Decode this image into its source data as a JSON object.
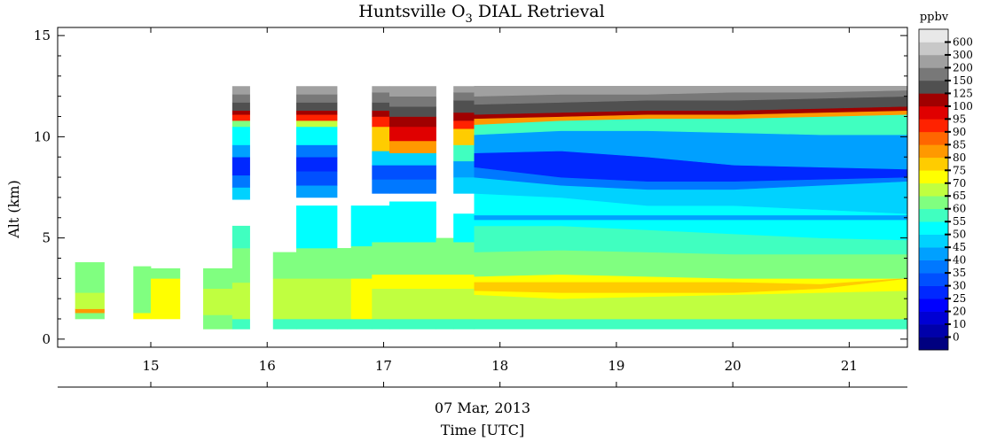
{
  "chart_data": {
    "type": "heatmap",
    "title": "Huntsville O₃ DIAL Retrieval",
    "title_main": "Huntsville O",
    "title_sub": "3",
    "title_tail": " DIAL Retrieval",
    "ylabel": "Alt (km)",
    "date_label": "07 Mar, 2013",
    "xlabel": "Time [UTC]",
    "colorbar_label": "ppbv",
    "xlim": [
      14.2,
      21.5
    ],
    "ylim": [
      -0.4,
      15.4
    ],
    "xticks": [
      15,
      16,
      17,
      18,
      19,
      20,
      21
    ],
    "yticks": [
      0,
      5,
      10,
      15
    ],
    "colorbar_levels": [
      0,
      10,
      20,
      25,
      30,
      35,
      40,
      45,
      50,
      55,
      60,
      65,
      70,
      75,
      80,
      85,
      90,
      95,
      100,
      125,
      150,
      200,
      300,
      600
    ],
    "colorbar_colors": [
      "#000080",
      "#0000aa",
      "#0000d4",
      "#0000ff",
      "#0028ff",
      "#0050ff",
      "#0078ff",
      "#00a0ff",
      "#00d2ff",
      "#00ffff",
      "#40ffc0",
      "#80ff80",
      "#c0ff40",
      "#ffff00",
      "#ffcc00",
      "#ff9900",
      "#ff6600",
      "#ff2200",
      "#e00000",
      "#a00000",
      "#505050",
      "#787878",
      "#a0a0a0",
      "#c8c8c8",
      "#e8e8e8"
    ],
    "columns": [
      {
        "t0": 14.35,
        "t1": 14.6,
        "bands": [
          [
            1.0,
            1.3,
            60
          ],
          [
            1.3,
            1.5,
            82
          ],
          [
            1.5,
            2.3,
            68
          ],
          [
            2.3,
            3.8,
            62
          ]
        ]
      },
      {
        "t0": 14.85,
        "t1": 15.0,
        "bands": [
          [
            1.0,
            1.3,
            70
          ],
          [
            1.3,
            3.6,
            63
          ]
        ]
      },
      {
        "t0": 15.0,
        "t1": 15.25,
        "bands": [
          [
            1.0,
            1.3,
            73
          ],
          [
            1.3,
            2.3,
            70
          ],
          [
            2.3,
            3.0,
            73
          ],
          [
            3.0,
            3.5,
            64
          ]
        ]
      },
      {
        "t0": 15.45,
        "t1": 15.7,
        "bands": [
          [
            0.5,
            1.2,
            60
          ],
          [
            1.2,
            2.5,
            66
          ],
          [
            2.5,
            3.5,
            63
          ]
        ]
      },
      {
        "t0": 15.7,
        "t1": 15.85,
        "bands": [
          [
            0.5,
            1.0,
            55
          ],
          [
            1.0,
            2.8,
            67
          ],
          [
            2.8,
            4.5,
            62
          ],
          [
            4.5,
            5.6,
            57
          ],
          [
            6.9,
            7.5,
            47
          ],
          [
            7.5,
            8.1,
            36
          ],
          [
            8.1,
            9.0,
            28
          ],
          [
            9.0,
            9.6,
            42
          ],
          [
            9.6,
            10.5,
            50
          ],
          [
            10.5,
            10.8,
            63
          ],
          [
            10.8,
            11.1,
            90
          ],
          [
            11.1,
            11.3,
            110
          ],
          [
            11.3,
            11.7,
            137
          ],
          [
            11.7,
            12.1,
            175
          ],
          [
            12.1,
            12.5,
            250
          ]
        ]
      },
      {
        "t0": 16.05,
        "t1": 16.25,
        "bands": [
          [
            0.5,
            1.0,
            55
          ],
          [
            1.0,
            3.0,
            68
          ],
          [
            3.0,
            4.3,
            62
          ]
        ]
      },
      {
        "t0": 16.25,
        "t1": 16.6,
        "bands": [
          [
            0.5,
            1.0,
            55
          ],
          [
            1.0,
            3.0,
            69
          ],
          [
            3.0,
            4.5,
            62
          ],
          [
            4.5,
            6.6,
            53
          ],
          [
            7.0,
            7.6,
            43
          ],
          [
            7.6,
            8.3,
            33
          ],
          [
            8.3,
            9.0,
            27
          ],
          [
            9.0,
            9.6,
            38
          ],
          [
            9.6,
            10.5,
            52
          ],
          [
            10.5,
            10.8,
            67
          ],
          [
            10.8,
            11.1,
            92
          ],
          [
            11.1,
            11.3,
            112
          ],
          [
            11.3,
            11.7,
            137
          ],
          [
            11.7,
            12.1,
            175
          ],
          [
            12.1,
            12.5,
            250
          ]
        ]
      },
      {
        "t0": 16.6,
        "t1": 16.72,
        "bands": [
          [
            0.5,
            1.0,
            55
          ],
          [
            1.0,
            3.0,
            69
          ],
          [
            3.0,
            4.5,
            61
          ]
        ]
      },
      {
        "t0": 16.72,
        "t1": 16.9,
        "bands": [
          [
            0.5,
            1.0,
            55
          ],
          [
            1.0,
            3.0,
            70
          ],
          [
            3.0,
            4.6,
            62
          ],
          [
            4.6,
            6.6,
            53
          ]
        ]
      },
      {
        "t0": 16.9,
        "t1": 17.05,
        "bands": [
          [
            0.5,
            1.0,
            55
          ],
          [
            1.0,
            2.5,
            69
          ],
          [
            2.5,
            3.2,
            72
          ],
          [
            3.2,
            4.8,
            62
          ],
          [
            4.8,
            6.6,
            53
          ],
          [
            7.2,
            7.9,
            37
          ],
          [
            7.9,
            8.6,
            30
          ],
          [
            8.6,
            9.3,
            45
          ],
          [
            9.3,
            10.5,
            77
          ],
          [
            10.5,
            11.0,
            90
          ],
          [
            11.0,
            11.3,
            115
          ],
          [
            11.3,
            11.7,
            137
          ],
          [
            11.7,
            12.2,
            175
          ],
          [
            12.2,
            12.5,
            250
          ]
        ]
      },
      {
        "t0": 17.05,
        "t1": 17.45,
        "bands": [
          [
            0.5,
            1.0,
            55
          ],
          [
            1.0,
            2.5,
            69
          ],
          [
            2.5,
            3.2,
            72
          ],
          [
            3.2,
            4.8,
            62
          ],
          [
            4.8,
            6.8,
            53
          ],
          [
            7.2,
            7.9,
            37
          ],
          [
            7.9,
            8.6,
            30
          ],
          [
            8.6,
            9.2,
            45
          ],
          [
            9.2,
            9.8,
            80
          ],
          [
            9.8,
            10.5,
            95
          ],
          [
            10.5,
            11.0,
            112
          ],
          [
            11.0,
            11.5,
            137
          ],
          [
            11.5,
            12.0,
            175
          ],
          [
            12.0,
            12.5,
            250
          ]
        ]
      },
      {
        "t0": 17.45,
        "t1": 17.6,
        "bands": [
          [
            0.5,
            1.0,
            55
          ],
          [
            1.0,
            2.5,
            69
          ],
          [
            2.5,
            3.2,
            72
          ],
          [
            3.2,
            5.0,
            62
          ]
        ]
      },
      {
        "t0": 17.6,
        "t1": 17.78,
        "bands": [
          [
            0.5,
            1.0,
            55
          ],
          [
            1.0,
            2.5,
            69
          ],
          [
            2.5,
            3.2,
            73
          ],
          [
            3.2,
            4.8,
            62
          ],
          [
            4.8,
            6.2,
            53
          ],
          [
            7.2,
            8.0,
            47
          ],
          [
            8.0,
            8.8,
            40
          ],
          [
            8.8,
            9.6,
            55
          ],
          [
            9.6,
            10.4,
            75
          ],
          [
            10.4,
            10.8,
            90
          ],
          [
            10.8,
            11.2,
            115
          ],
          [
            11.2,
            11.8,
            137
          ],
          [
            11.8,
            12.2,
            175
          ],
          [
            12.2,
            12.5,
            250
          ]
        ]
      }
    ],
    "cont_x0": 17.78,
    "cont_x1": 21.5,
    "cont_layers": [
      {
        "bot": [
          0.5,
          0.5,
          0.5,
          0.5,
          0.5,
          0.5
        ],
        "top": [
          1.0,
          1.0,
          1.0,
          1.0,
          1.0,
          1.0
        ],
        "v": 55
      },
      {
        "bot": [
          1.0,
          1.0,
          1.0,
          1.0,
          1.0,
          1.0
        ],
        "top": [
          2.2,
          2.0,
          2.1,
          2.2,
          2.3,
          2.4
        ],
        "v": 68
      },
      {
        "bot": [
          2.2,
          2.0,
          2.1,
          2.2,
          2.3,
          2.4
        ],
        "top": [
          3.1,
          3.2,
          3.1,
          3.0,
          3.0,
          3.0
        ],
        "v": 72
      },
      {
        "bot": [
          2.4,
          2.3,
          2.3,
          2.3,
          2.5,
          3.0
        ],
        "top": [
          2.8,
          2.8,
          2.8,
          2.8,
          2.7,
          3.0
        ],
        "v": 77
      },
      {
        "bot": [
          3.1,
          3.2,
          3.1,
          3.0,
          3.0,
          3.0
        ],
        "top": [
          4.3,
          4.4,
          4.3,
          4.2,
          4.2,
          4.2
        ],
        "v": 63
      },
      {
        "bot": [
          4.3,
          4.4,
          4.3,
          4.2,
          4.2,
          4.2
        ],
        "top": [
          5.6,
          5.6,
          5.4,
          5.2,
          5.0,
          4.9
        ],
        "v": 58
      },
      {
        "bot": [
          5.6,
          5.6,
          5.4,
          5.2,
          5.0,
          4.9
        ],
        "top": [
          7.2,
          7.0,
          6.6,
          6.6,
          6.4,
          6.2
        ],
        "v": 53
      },
      {
        "bot": [
          5.9,
          5.9,
          5.9,
          5.9,
          5.9,
          5.9
        ],
        "top": [
          6.1,
          6.1,
          6.1,
          6.1,
          6.1,
          6.1
        ],
        "v": 40
      },
      {
        "bot": [
          7.2,
          7.0,
          6.6,
          6.6,
          6.4,
          6.2
        ],
        "top": [
          8.0,
          7.6,
          7.4,
          7.4,
          7.6,
          7.8
        ],
        "v": 47
      },
      {
        "bot": [
          8.0,
          7.6,
          7.4,
          7.4,
          7.6,
          7.8
        ],
        "top": [
          8.5,
          8.0,
          7.8,
          7.8,
          7.9,
          8.0
        ],
        "v": 37
      },
      {
        "bot": [
          8.5,
          8.0,
          7.8,
          7.8,
          7.9,
          8.0
        ],
        "top": [
          9.2,
          9.3,
          9.0,
          8.6,
          8.5,
          8.4
        ],
        "v": 27
      },
      {
        "bot": [
          9.2,
          9.3,
          9.0,
          8.6,
          8.5,
          8.4
        ],
        "top": [
          10.1,
          10.3,
          10.3,
          10.2,
          10.1,
          10.1
        ],
        "v": 43
      },
      {
        "bot": [
          10.1,
          10.3,
          10.3,
          10.2,
          10.1,
          10.1
        ],
        "top": [
          10.6,
          10.8,
          10.9,
          10.9,
          11.0,
          11.1
        ],
        "v": 55
      },
      {
        "bot": [
          10.6,
          10.8,
          10.9,
          10.9,
          11.0,
          11.1
        ],
        "top": [
          10.9,
          11.0,
          11.1,
          11.1,
          11.2,
          11.3
        ],
        "v": 80
      },
      {
        "bot": [
          10.9,
          11.0,
          11.1,
          11.1,
          11.2,
          11.3
        ],
        "top": [
          11.1,
          11.2,
          11.3,
          11.3,
          11.4,
          11.5
        ],
        "v": 110
      },
      {
        "bot": [
          11.1,
          11.2,
          11.3,
          11.3,
          11.4,
          11.5
        ],
        "top": [
          11.6,
          11.7,
          11.8,
          11.8,
          11.9,
          12.0
        ],
        "v": 137
      },
      {
        "bot": [
          11.6,
          11.7,
          11.8,
          11.8,
          11.9,
          12.0
        ],
        "top": [
          12.0,
          12.1,
          12.1,
          12.2,
          12.2,
          12.3
        ],
        "v": 175
      },
      {
        "bot": [
          12.0,
          12.1,
          12.1,
          12.2,
          12.2,
          12.3
        ],
        "top": [
          12.5,
          12.5,
          12.5,
          12.5,
          12.5,
          12.5
        ],
        "v": 250
      }
    ]
  }
}
